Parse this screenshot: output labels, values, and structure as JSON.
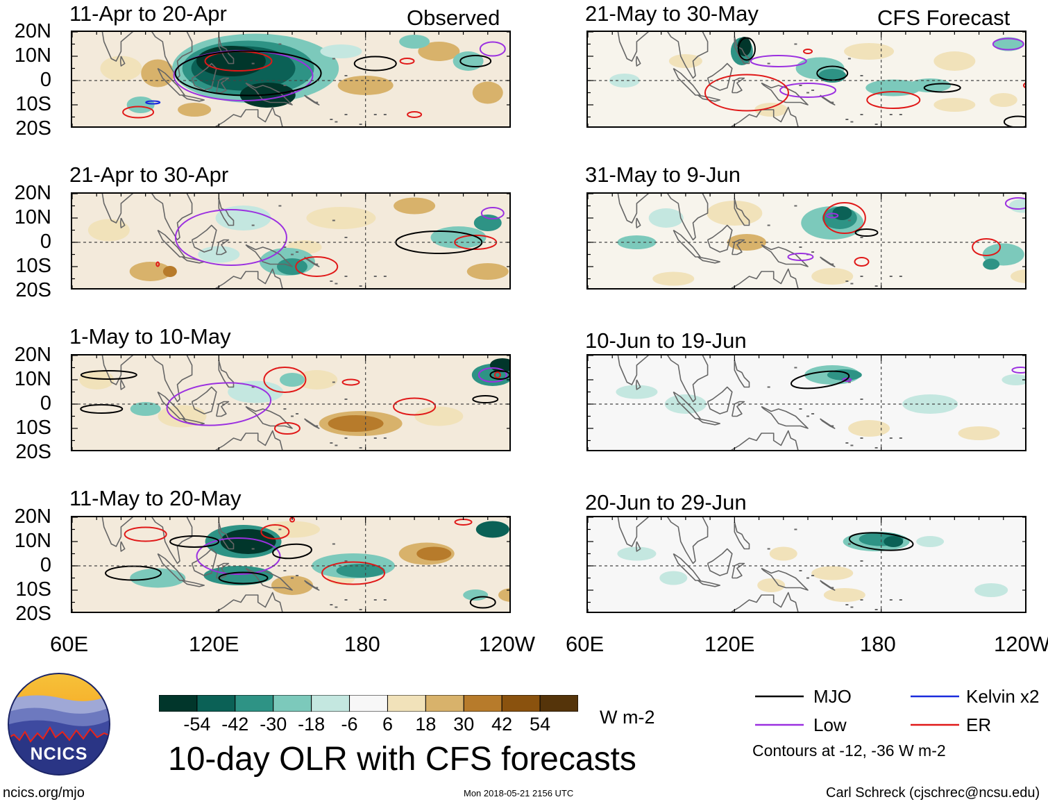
{
  "chart_data": {
    "type": "heatmap",
    "title": "10-day OLR with CFS forecasts",
    "colorbar": {
      "unit": "W m-2",
      "ticks": [
        "-54",
        "-42",
        "-30",
        "-18",
        "-6",
        "6",
        "18",
        "30",
        "42",
        "54"
      ],
      "colors": [
        "#01362b",
        "#0b6156",
        "#2e9385",
        "#7cc9bb",
        "#c4e7e0",
        "#f7f7f7",
        "#f1e2ba",
        "#d8b26b",
        "#b77b2b",
        "#8a520e",
        "#55340a"
      ]
    },
    "lat_ticks": [
      "20N",
      "10N",
      "0",
      "10S",
      "20S"
    ],
    "lon_ticks": [
      "60E",
      "120E",
      "180",
      "120W"
    ],
    "panels_left": [
      {
        "title": "11-Apr to 20-Apr",
        "tag": "Observed"
      },
      {
        "title": "21-Apr to 30-Apr",
        "tag": ""
      },
      {
        "title": "1-May to 10-May",
        "tag": ""
      },
      {
        "title": "11-May to 20-May",
        "tag": ""
      }
    ],
    "panels_right": [
      {
        "title": "21-May to 30-May",
        "tag": "CFS Forecast"
      },
      {
        "title": "31-May to 9-Jun",
        "tag": ""
      },
      {
        "title": "10-Jun to 19-Jun",
        "tag": ""
      },
      {
        "title": "20-Jun to 29-Jun",
        "tag": ""
      }
    ],
    "legend": [
      {
        "name": "MJO",
        "color": "#000000"
      },
      {
        "name": "Kelvin x2",
        "color": "#1a2bdc"
      },
      {
        "name": "Low",
        "color": "#9b30e0"
      },
      {
        "name": "ER",
        "color": "#e01818"
      }
    ],
    "contour_note": "Contours at -12, -36 W m-2"
  },
  "logo_text": "NCICS",
  "footer": {
    "left": "ncics.org/mjo",
    "center": "Mon 2018-05-21 2156 UTC",
    "right": "Carl Schreck (cjschrec@ncsu.edu)"
  }
}
